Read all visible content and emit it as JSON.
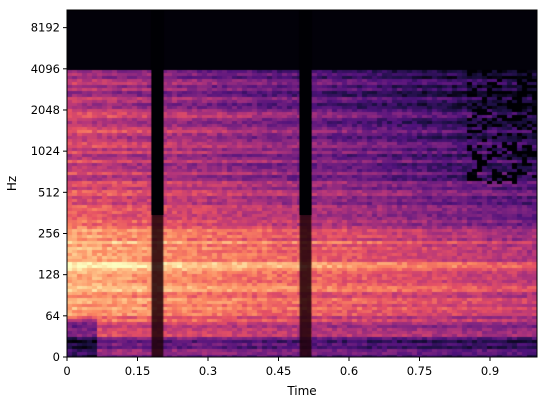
{
  "chart_data": {
    "type": "heatmap",
    "title": "",
    "xlabel": "Time",
    "ylabel": "Hz",
    "xlim": [
      0,
      1.0
    ],
    "y_scale": "symlog",
    "ylim_hz": [
      0,
      11025
    ],
    "x_ticks": [
      {
        "value": 0,
        "label": "0"
      },
      {
        "value": 0.15,
        "label": "0.15"
      },
      {
        "value": 0.3,
        "label": "0.3"
      },
      {
        "value": 0.45,
        "label": "0.45"
      },
      {
        "value": 0.6,
        "label": "0.6"
      },
      {
        "value": 0.75,
        "label": "0.75"
      },
      {
        "value": 0.9,
        "label": "0.9"
      }
    ],
    "y_ticks": [
      {
        "value": 0,
        "label": "0"
      },
      {
        "value": 64,
        "label": "64"
      },
      {
        "value": 128,
        "label": "128"
      },
      {
        "value": 256,
        "label": "256"
      },
      {
        "value": 512,
        "label": "512"
      },
      {
        "value": 1024,
        "label": "1024"
      },
      {
        "value": 2048,
        "label": "2048"
      },
      {
        "value": 4096,
        "label": "4096"
      },
      {
        "value": 8192,
        "label": "8192"
      }
    ],
    "colormap": "magma",
    "bandlimit_hz": 4096,
    "masked_time_segments": [
      {
        "start": 0.18,
        "end": 0.205
      },
      {
        "start": 0.495,
        "end": 0.52
      }
    ],
    "masked_time_full_above_hz": 350,
    "energy_profile": {
      "description": "relative energy by frequency band",
      "bands": [
        {
          "hz": 40,
          "level": 0.55
        },
        {
          "hz": 80,
          "level": 0.8
        },
        {
          "hz": 150,
          "level": 0.95
        },
        {
          "hz": 250,
          "level": 0.82
        },
        {
          "hz": 500,
          "level": 0.6
        },
        {
          "hz": 1000,
          "level": 0.55
        },
        {
          "hz": 1500,
          "level": 0.62
        },
        {
          "hz": 3000,
          "level": 0.5
        }
      ]
    }
  }
}
